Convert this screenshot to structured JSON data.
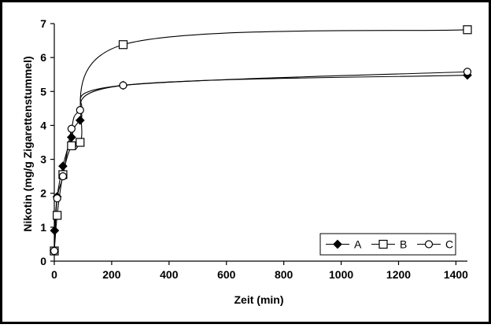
{
  "chart_data": {
    "type": "line",
    "title": "",
    "xlabel": "Zeit (min)",
    "ylabel": "Nikotin (mg/g Zigarettenstummel)",
    "xlim": [
      0,
      1440
    ],
    "ylim": [
      0,
      7
    ],
    "xticks": [
      0,
      200,
      400,
      600,
      800,
      1000,
      1200,
      1400
    ],
    "yticks": [
      0,
      1,
      2,
      3,
      4,
      5,
      6,
      7
    ],
    "grid": false,
    "legend_position": "bottom-right",
    "series": [
      {
        "name": "A",
        "marker": "filled-diamond",
        "color": "#000000",
        "x": [
          0,
          1,
          10,
          30,
          60,
          90,
          240,
          1440
        ],
        "y": [
          0.3,
          0.9,
          1.9,
          2.8,
          3.65,
          4.15,
          5.18,
          5.48
        ]
      },
      {
        "name": "B",
        "marker": "open-square",
        "color": "#000000",
        "x": [
          0,
          10,
          30,
          60,
          90,
          240,
          1440
        ],
        "y": [
          0.3,
          1.35,
          2.55,
          3.4,
          3.5,
          6.38,
          6.82
        ]
      },
      {
        "name": "C",
        "marker": "open-circle",
        "color": "#000000",
        "x": [
          0,
          10,
          30,
          60,
          90,
          240,
          1440
        ],
        "y": [
          0.3,
          1.85,
          2.5,
          3.9,
          4.45,
          5.18,
          5.58
        ]
      }
    ]
  }
}
